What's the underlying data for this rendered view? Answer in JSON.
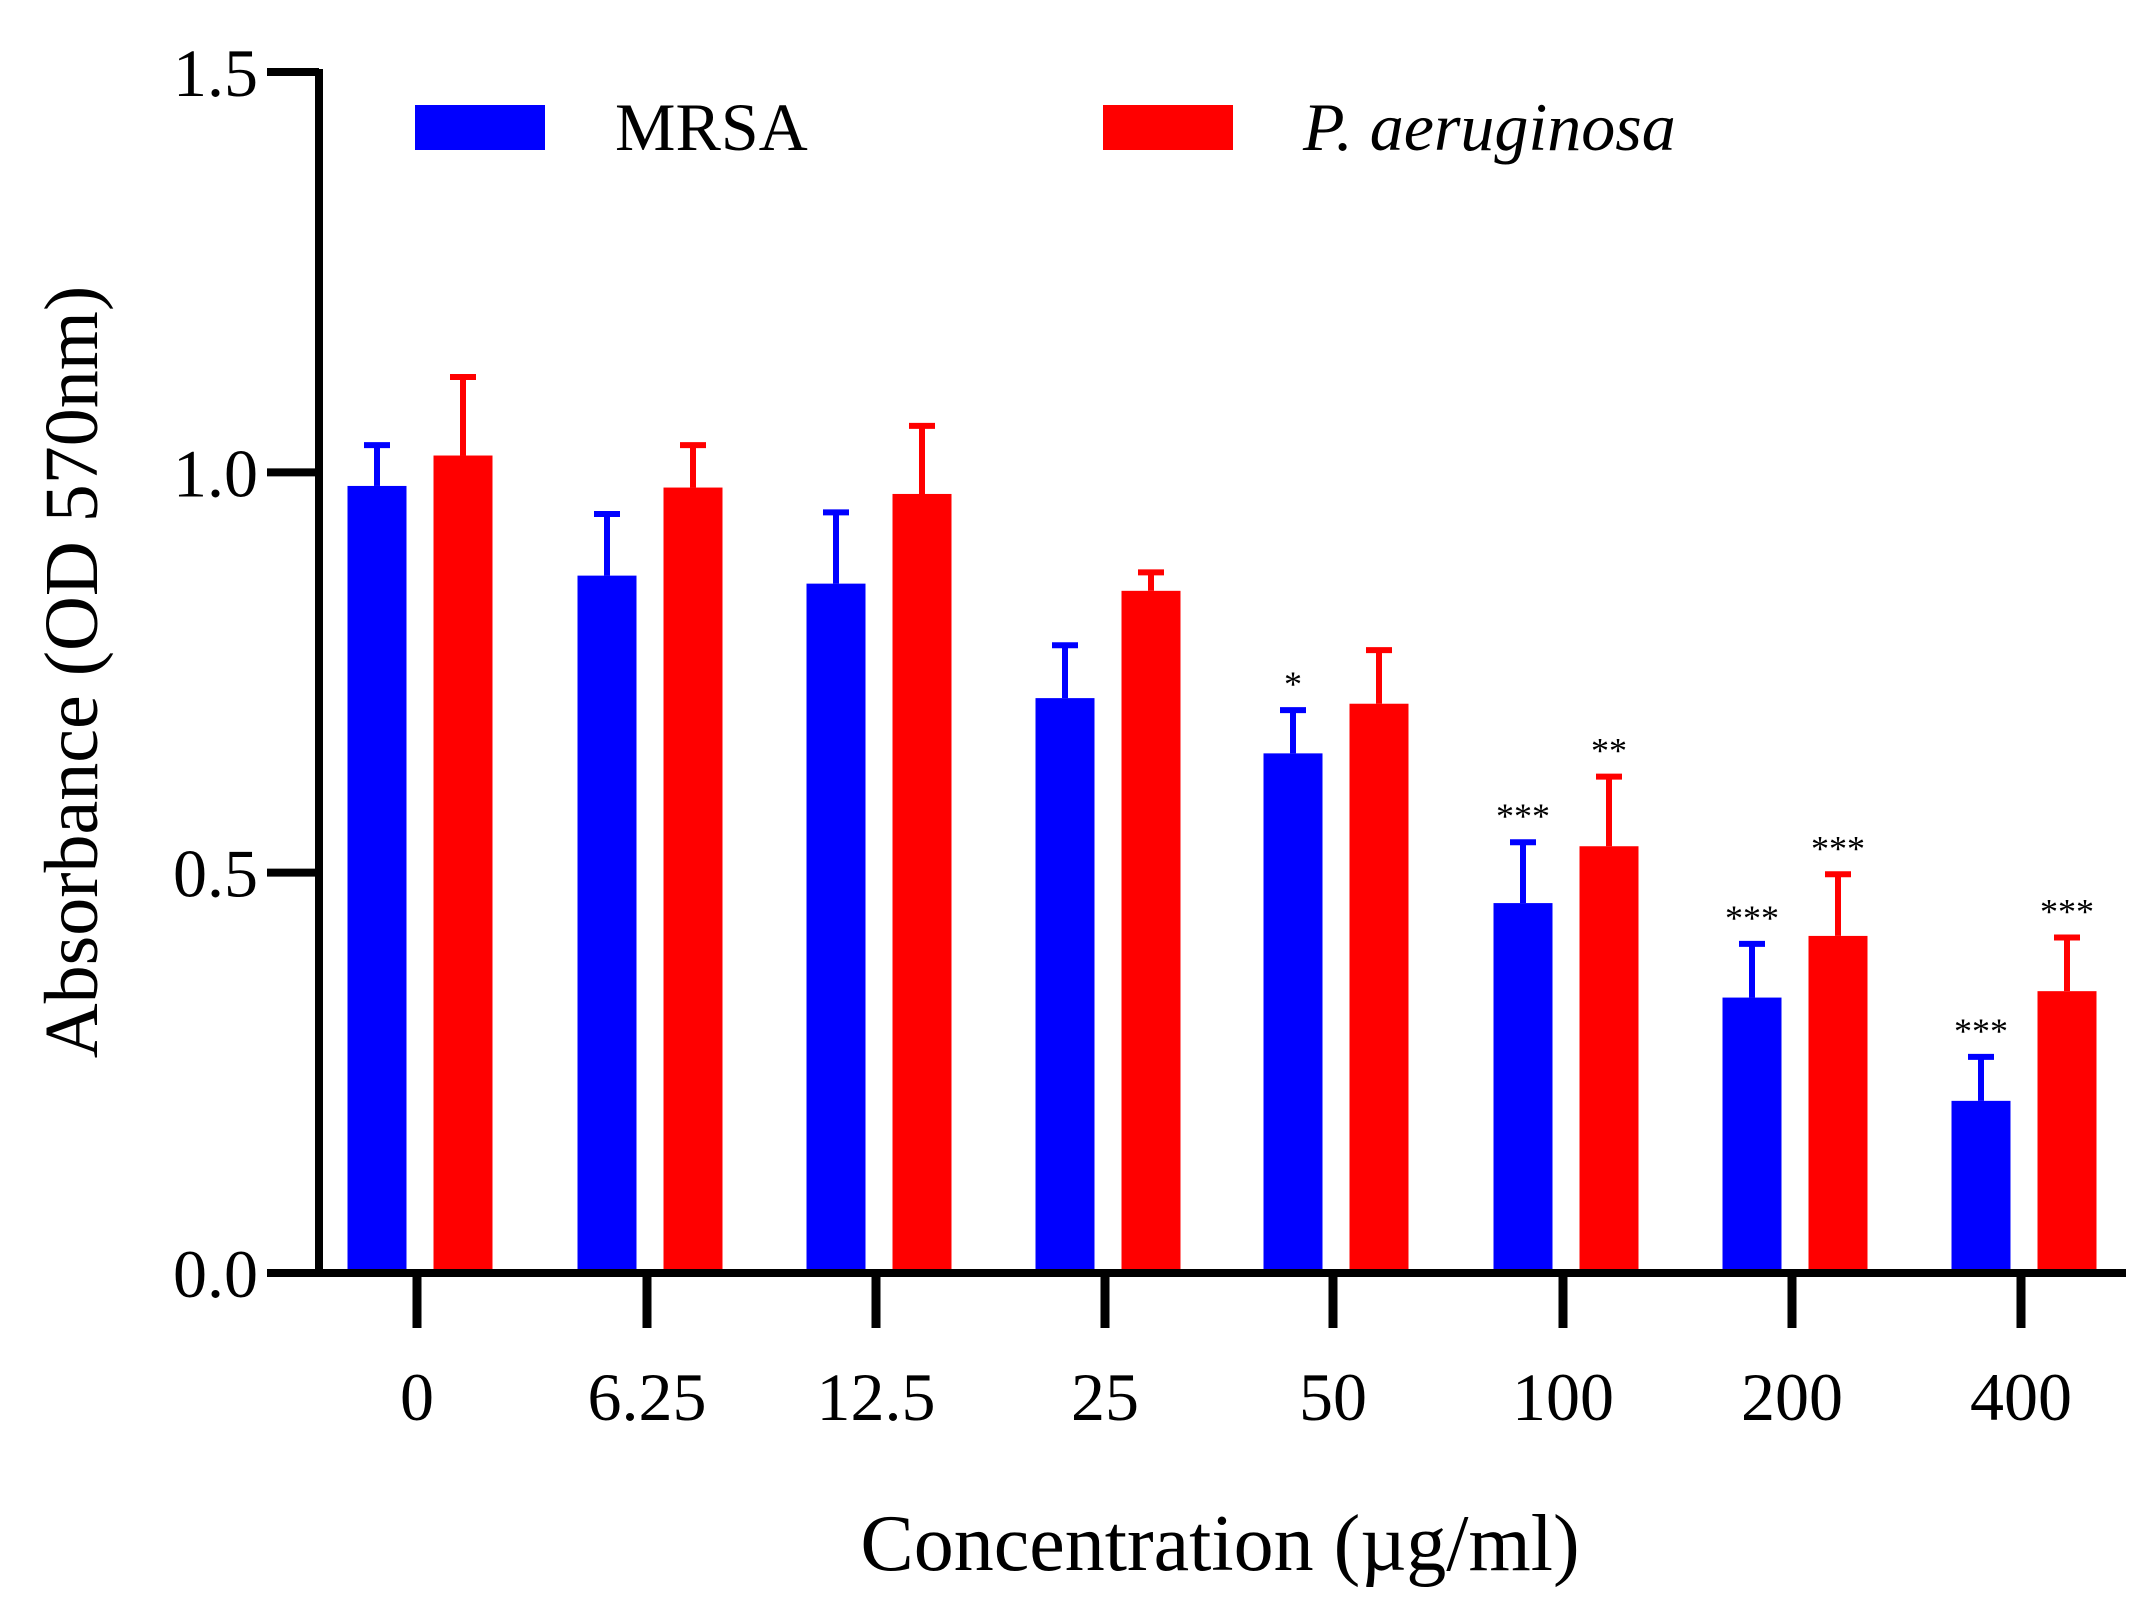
{
  "chart_data": {
    "type": "bar",
    "title": "",
    "xlabel": "Concentration (µg/ml)",
    "ylabel": "Absorbance (OD 570nm)",
    "ylim": [
      0,
      1.5
    ],
    "yticks": [
      "0.0",
      "0.5",
      "1.0",
      "1.5"
    ],
    "ytick_values": [
      0,
      0.5,
      1.0,
      1.5
    ],
    "categories": [
      "0",
      "6.25",
      "12.5",
      "25",
      "50",
      "100",
      "200",
      "400"
    ],
    "grid": false,
    "legend_position": "top",
    "series": [
      {
        "name": "MRSA",
        "italic": false,
        "color": "#0000ff",
        "values": [
          0.983,
          0.871,
          0.861,
          0.718,
          0.649,
          0.462,
          0.344,
          0.215
        ],
        "error_upper": [
          1.034,
          0.948,
          0.95,
          0.784,
          0.703,
          0.538,
          0.411,
          0.27
        ],
        "significance": [
          "",
          "",
          "",
          "",
          "*",
          "***",
          "***",
          "***"
        ]
      },
      {
        "name": "P. aeruginosa",
        "italic": true,
        "color": "#ff0000",
        "values": [
          1.021,
          0.981,
          0.973,
          0.852,
          0.711,
          0.533,
          0.421,
          0.352
        ],
        "error_upper": [
          1.119,
          1.034,
          1.058,
          0.875,
          0.778,
          0.62,
          0.498,
          0.419
        ],
        "significance": [
          "",
          "",
          "",
          "",
          "",
          "**",
          "***",
          "***"
        ]
      }
    ]
  }
}
